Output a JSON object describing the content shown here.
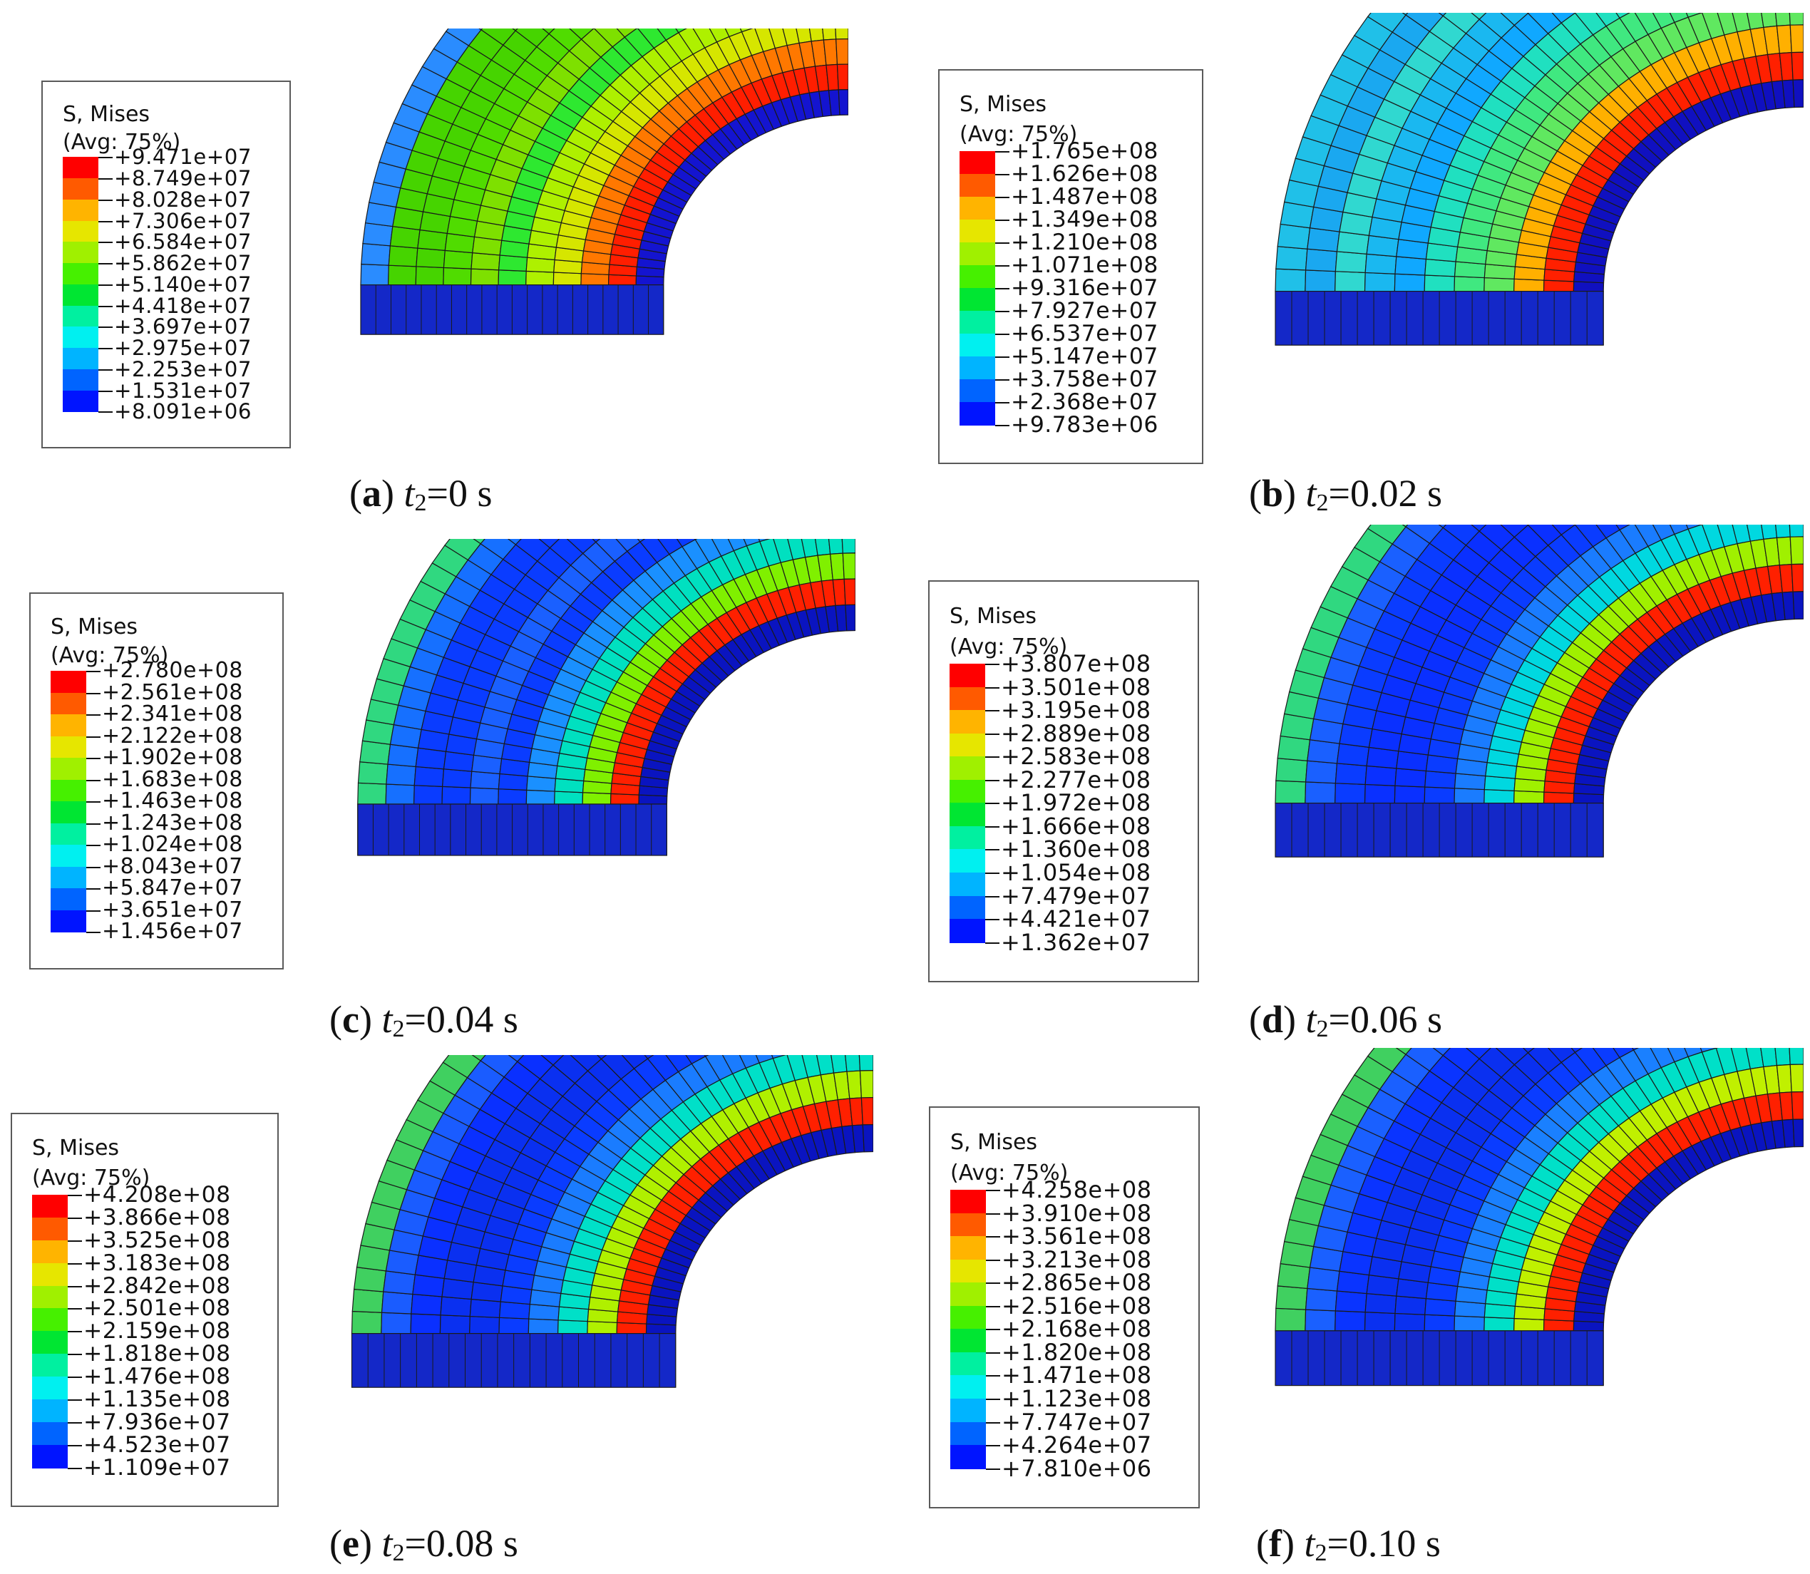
{
  "legend_colors": [
    "#ff0000",
    "#ff5a00",
    "#ffb400",
    "#e6e600",
    "#a0f000",
    "#46f000",
    "#00e632",
    "#00f0a0",
    "#00f0f0",
    "#00b4ff",
    "#0064ff",
    "#0014ff"
  ],
  "panels": [
    {
      "legend": {
        "title": "S, Mises",
        "subtitle": "(Avg: 75%)",
        "values": [
          "+9.471e+07",
          "+8.749e+07",
          "+8.028e+07",
          "+7.306e+07",
          "+6.584e+07",
          "+5.862e+07",
          "+5.140e+07",
          "+4.418e+07",
          "+3.697e+07",
          "+2.975e+07",
          "+2.253e+07",
          "+1.531e+07",
          "+8.091e+06"
        ]
      },
      "caption": {
        "letter": "a",
        "var": "t",
        "sub": "2",
        "value": "=0 s"
      }
    },
    {
      "legend": {
        "title": "S, Mises",
        "subtitle": "(Avg: 75%)",
        "values": [
          "+1.765e+08",
          "+1.626e+08",
          "+1.487e+08",
          "+1.349e+08",
          "+1.210e+08",
          "+1.071e+08",
          "+9.316e+07",
          "+7.927e+07",
          "+6.537e+07",
          "+5.147e+07",
          "+3.758e+07",
          "+2.368e+07",
          "+9.783e+06"
        ]
      },
      "caption": {
        "letter": "b",
        "var": "t",
        "sub": "2",
        "value": "=0.02 s"
      }
    },
    {
      "legend": {
        "title": "S, Mises",
        "subtitle": "(Avg: 75%)",
        "values": [
          "+2.780e+08",
          "+2.561e+08",
          "+2.341e+08",
          "+2.122e+08",
          "+1.902e+08",
          "+1.683e+08",
          "+1.463e+08",
          "+1.243e+08",
          "+1.024e+08",
          "+8.043e+07",
          "+5.847e+07",
          "+3.651e+07",
          "+1.456e+07"
        ]
      },
      "caption": {
        "letter": "c",
        "var": "t",
        "sub": "2",
        "value": "=0.04 s"
      }
    },
    {
      "legend": {
        "title": "S, Mises",
        "subtitle": "(Avg: 75%)",
        "values": [
          "+3.807e+08",
          "+3.501e+08",
          "+3.195e+08",
          "+2.889e+08",
          "+2.583e+08",
          "+2.277e+08",
          "+1.972e+08",
          "+1.666e+08",
          "+1.360e+08",
          "+1.054e+08",
          "+7.479e+07",
          "+4.421e+07",
          "+1.362e+07"
        ]
      },
      "caption": {
        "letter": "d",
        "var": "t",
        "sub": "2",
        "value": "=0.06 s"
      }
    },
    {
      "legend": {
        "title": "S, Mises",
        "subtitle": "(Avg: 75%)",
        "values": [
          "+4.208e+08",
          "+3.866e+08",
          "+3.525e+08",
          "+3.183e+08",
          "+2.842e+08",
          "+2.501e+08",
          "+2.159e+08",
          "+1.818e+08",
          "+1.476e+08",
          "+1.135e+08",
          "+7.936e+07",
          "+4.523e+07",
          "+1.109e+07"
        ]
      },
      "caption": {
        "letter": "e",
        "var": "t",
        "sub": "2",
        "value": "=0.08 s"
      }
    },
    {
      "legend": {
        "title": "S, Mises",
        "subtitle": "(Avg: 75%)",
        "values": [
          "+4.258e+08",
          "+3.910e+08",
          "+3.561e+08",
          "+3.213e+08",
          "+2.865e+08",
          "+2.516e+08",
          "+2.168e+08",
          "+1.820e+08",
          "+1.471e+08",
          "+1.123e+08",
          "+7.747e+07",
          "+4.264e+07",
          "+7.810e+06"
        ]
      },
      "caption": {
        "letter": "f",
        "var": "t",
        "sub": "2",
        "value": "=0.10 s"
      }
    }
  ]
}
